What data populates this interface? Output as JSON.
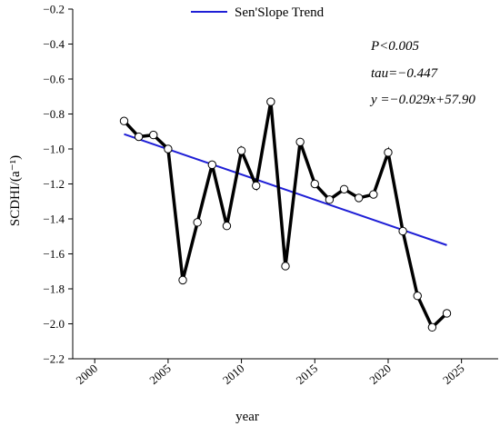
{
  "chart_data": {
    "type": "line",
    "xlabel": "year",
    "ylabel": "SCDHI/(a⁻¹)",
    "xlim": [
      1998.5,
      2027.5
    ],
    "ylim": [
      -2.2,
      -0.2
    ],
    "x_ticks": [
      2000,
      2005,
      2010,
      2015,
      2020,
      2025
    ],
    "y_ticks": [
      -2.2,
      -2.0,
      -1.8,
      -1.6,
      -1.4,
      -1.2,
      -1.0,
      -0.8,
      -0.6,
      -0.4,
      -0.2
    ],
    "x_tick_labels": [
      "2000",
      "2005",
      "2010",
      "2015",
      "2020",
      "2025"
    ],
    "y_tick_labels": [
      "−2.2",
      "−2.0",
      "−1.8",
      "−1.6",
      "−1.4",
      "−1.2",
      "−1.0",
      "−0.8",
      "−0.6",
      "−0.4",
      "−0.2"
    ],
    "series": [
      {
        "color": "#000000",
        "x": [
          2002,
          2003,
          2004,
          2005,
          2006,
          2007,
          2008,
          2009,
          2010,
          2011,
          2012,
          2013,
          2014,
          2015,
          2016,
          2017,
          2018,
          2019,
          2020,
          2021,
          2022,
          2023,
          2024
        ],
        "y": [
          -0.84,
          -0.93,
          -0.92,
          -1.0,
          -1.75,
          -1.42,
          -1.09,
          -1.44,
          -1.01,
          -1.21,
          -0.73,
          -1.67,
          -0.96,
          -1.2,
          -1.29,
          -1.23,
          -1.28,
          -1.26,
          -1.02,
          -1.47,
          -1.84,
          -2.02,
          -1.94
        ]
      },
      {
        "name": "Sen'Slope Trend",
        "color": "#1f1fd6",
        "x": [
          2002,
          2024
        ],
        "y": [
          -0.915,
          -1.55
        ]
      }
    ],
    "legend": {
      "position": "top-center",
      "entries": [
        "Sen'Slope Trend"
      ]
    },
    "annotations": [
      "P<0.005",
      "tau=−0.447",
      "y =−0.029x+57.90"
    ],
    "grid": false
  }
}
